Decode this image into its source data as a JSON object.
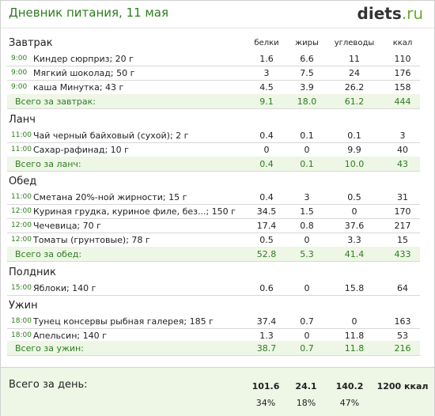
{
  "title": "Дневник питания, 11 мая",
  "logo": {
    "main": "diets",
    "suffix": ".ru"
  },
  "columns": [
    "белки",
    "жиры",
    "углеводы",
    "ккал"
  ],
  "sections": [
    {
      "title": "Завтрак",
      "items": [
        {
          "time": "9:00",
          "name": "Киндер сюрприз; 20 г",
          "protein": "1.6",
          "fat": "6.6",
          "carbs": "11",
          "kcal": "110"
        },
        {
          "time": "9:00",
          "name": "Мягкий шоколад; 50 г",
          "protein": "3",
          "fat": "7.5",
          "carbs": "24",
          "kcal": "176"
        },
        {
          "time": "9:00",
          "name": "каша Минутка; 43 г",
          "protein": "4.5",
          "fat": "3.9",
          "carbs": "26.2",
          "kcal": "158"
        }
      ],
      "total": {
        "label": "Всего за завтрак:",
        "protein": "9.1",
        "fat": "18.0",
        "carbs": "61.2",
        "kcal": "444"
      }
    },
    {
      "title": "Ланч",
      "items": [
        {
          "time": "11:00",
          "name": "Чай черный байховый (сухой); 2 г",
          "protein": "0.4",
          "fat": "0.1",
          "carbs": "0.1",
          "kcal": "3"
        },
        {
          "time": "11:00",
          "name": "Сахар-рафинад; 10 г",
          "protein": "0",
          "fat": "0",
          "carbs": "9.9",
          "kcal": "40"
        }
      ],
      "total": {
        "label": "Всего за ланч:",
        "protein": "0.4",
        "fat": "0.1",
        "carbs": "10.0",
        "kcal": "43"
      }
    },
    {
      "title": "Обед",
      "items": [
        {
          "time": "11:00",
          "name": "Сметана 20%-ной жирности; 15 г",
          "protein": "0.4",
          "fat": "3",
          "carbs": "0.5",
          "kcal": "31"
        },
        {
          "time": "12:00",
          "name": "Куриная грудка, куриное филе, без...; 150 г",
          "protein": "34.5",
          "fat": "1.5",
          "carbs": "0",
          "kcal": "170"
        },
        {
          "time": "12:00",
          "name": "Чечевица; 70 г",
          "protein": "17.4",
          "fat": "0.8",
          "carbs": "37.6",
          "kcal": "217"
        },
        {
          "time": "12:00",
          "name": "Томаты (грунтовые); 78 г",
          "protein": "0.5",
          "fat": "0",
          "carbs": "3.3",
          "kcal": "15"
        }
      ],
      "total": {
        "label": "Всего за обед:",
        "protein": "52.8",
        "fat": "5.3",
        "carbs": "41.4",
        "kcal": "433"
      }
    },
    {
      "title": "Полдник",
      "items": [
        {
          "time": "15:00",
          "name": "Яблоки; 140 г",
          "protein": "0.6",
          "fat": "0",
          "carbs": "15.8",
          "kcal": "64"
        }
      ],
      "total": null
    },
    {
      "title": "Ужин",
      "items": [
        {
          "time": "18:00",
          "name": "Тунец консервы рыбная галерея; 185 г",
          "protein": "37.4",
          "fat": "0.7",
          "carbs": "0",
          "kcal": "163"
        },
        {
          "time": "18:00",
          "name": "Апельсин; 140 г",
          "protein": "1.3",
          "fat": "0",
          "carbs": "11.8",
          "kcal": "53"
        }
      ],
      "total": {
        "label": "Всего за ужин:",
        "protein": "38.7",
        "fat": "0.7",
        "carbs": "11.8",
        "kcal": "216"
      }
    }
  ],
  "day_total": {
    "label": "Всего за день:",
    "protein": "101.6",
    "fat": "24.1",
    "carbs": "140.2",
    "kcal": "1200 ккал",
    "protein_pct": "34%",
    "fat_pct": "18%",
    "carbs_pct": "47%"
  },
  "colors": {
    "accent_green": "#2d7d1f",
    "total_row_bg": "#eef6e6"
  }
}
